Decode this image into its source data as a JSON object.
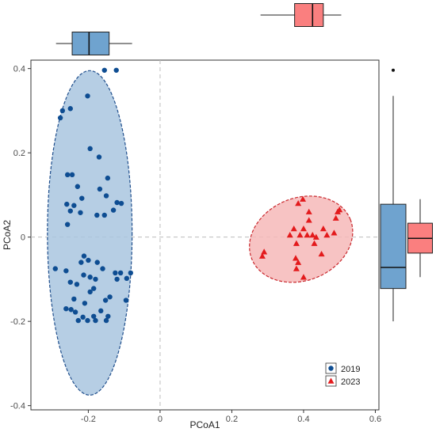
{
  "chart_data": {
    "type": "scatter",
    "title": "",
    "xlabel": "PCoA1",
    "ylabel": "PCoA2",
    "xlim": [
      -0.36,
      0.61
    ],
    "ylim": [
      -0.41,
      0.42
    ],
    "xticks": [
      -0.2,
      0,
      0.2,
      0.4,
      0.6
    ],
    "xtick_labels": [
      "-0.2",
      "0",
      "0.2",
      "0.4",
      "0.6"
    ],
    "yticks": [
      -0.4,
      -0.2,
      0,
      0.2,
      0.4
    ],
    "ytick_labels": [
      "-0.4",
      "-0.2",
      "0",
      "0.2",
      "0.4"
    ],
    "grid": false,
    "reference_lines": {
      "x": 0,
      "y": 0
    },
    "legend_position": "bottom-right",
    "series": [
      {
        "name": "2019",
        "marker": "circle",
        "color": "#0e4d92",
        "fill": "#4f86bd",
        "points": [
          [
            -0.155,
            0.396
          ],
          [
            -0.122,
            0.396
          ],
          [
            -0.202,
            0.335
          ],
          [
            -0.272,
            0.3
          ],
          [
            -0.278,
            0.283
          ],
          [
            -0.25,
            0.305
          ],
          [
            -0.195,
            0.21
          ],
          [
            -0.17,
            0.19
          ],
          [
            -0.258,
            0.148
          ],
          [
            -0.245,
            0.148
          ],
          [
            -0.146,
            0.14
          ],
          [
            -0.168,
            0.114
          ],
          [
            -0.23,
            0.12
          ],
          [
            -0.15,
            0.098
          ],
          [
            -0.218,
            0.092
          ],
          [
            -0.26,
            0.078
          ],
          [
            -0.24,
            0.075
          ],
          [
            -0.12,
            0.082
          ],
          [
            -0.108,
            0.08
          ],
          [
            -0.25,
            0.062
          ],
          [
            -0.222,
            0.058
          ],
          [
            -0.176,
            0.052
          ],
          [
            -0.13,
            0.064
          ],
          [
            -0.155,
            0.052
          ],
          [
            -0.258,
            0.03
          ],
          [
            -0.292,
            -0.075
          ],
          [
            -0.262,
            -0.08
          ],
          [
            -0.212,
            -0.045
          ],
          [
            -0.22,
            -0.06
          ],
          [
            -0.2,
            -0.055
          ],
          [
            -0.175,
            -0.06
          ],
          [
            -0.16,
            -0.075
          ],
          [
            -0.11,
            -0.085
          ],
          [
            -0.082,
            -0.085
          ],
          [
            -0.125,
            -0.085
          ],
          [
            -0.213,
            -0.09
          ],
          [
            -0.195,
            -0.095
          ],
          [
            -0.18,
            -0.1
          ],
          [
            -0.12,
            -0.1
          ],
          [
            -0.093,
            -0.098
          ],
          [
            -0.25,
            -0.107
          ],
          [
            -0.232,
            -0.112
          ],
          [
            -0.195,
            -0.13
          ],
          [
            -0.185,
            -0.122
          ],
          [
            -0.14,
            -0.142
          ],
          [
            -0.24,
            -0.147
          ],
          [
            -0.152,
            -0.15
          ],
          [
            -0.21,
            -0.157
          ],
          [
            -0.095,
            -0.15
          ],
          [
            -0.262,
            -0.17
          ],
          [
            -0.165,
            -0.175
          ],
          [
            -0.215,
            -0.19
          ],
          [
            -0.236,
            -0.178
          ],
          [
            -0.248,
            -0.172
          ],
          [
            -0.185,
            -0.188
          ],
          [
            -0.228,
            -0.198
          ],
          [
            -0.202,
            -0.198
          ],
          [
            -0.18,
            -0.198
          ],
          [
            -0.15,
            -0.198
          ],
          [
            -0.145,
            -0.188
          ]
        ]
      },
      {
        "name": "2023",
        "marker": "triangle",
        "color": "#e31a1c",
        "fill": "#f8a5a5",
        "points": [
          [
            0.398,
            0.09
          ],
          [
            0.385,
            0.08
          ],
          [
            0.415,
            0.06
          ],
          [
            0.415,
            0.04
          ],
          [
            0.4,
            0.02
          ],
          [
            0.373,
            0.02
          ],
          [
            0.362,
            0.005
          ],
          [
            0.39,
            0.005
          ],
          [
            0.41,
            0.005
          ],
          [
            0.425,
            0.005
          ],
          [
            0.455,
            0.02
          ],
          [
            0.465,
            0.005
          ],
          [
            0.435,
            0.0
          ],
          [
            0.485,
            0.01
          ],
          [
            0.49,
            0.045
          ],
          [
            0.495,
            0.06
          ],
          [
            0.5,
            0.065
          ],
          [
            0.38,
            -0.015
          ],
          [
            0.43,
            -0.015
          ],
          [
            0.45,
            -0.04
          ],
          [
            0.378,
            -0.05
          ],
          [
            0.29,
            -0.035
          ],
          [
            0.285,
            -0.045
          ],
          [
            0.385,
            -0.06
          ],
          [
            0.38,
            -0.075
          ],
          [
            0.4,
            -0.095
          ]
        ]
      }
    ],
    "ellipses": [
      {
        "series": "2019",
        "cx": -0.196,
        "cy": 0.01,
        "rx": 0.118,
        "ry": 0.385,
        "fill": "#a9c6df",
        "stroke": "#1f4e8c"
      },
      {
        "series": "2023",
        "cx": 0.393,
        "cy": -0.005,
        "rx": 0.148,
        "ry": 0.098,
        "angle": -22,
        "fill": "#f6b8b8",
        "stroke": "#c9282d"
      }
    ],
    "marginal_boxplots": {
      "x": [
        {
          "series": "2019",
          "min": -0.29,
          "q1": -0.245,
          "median": -0.198,
          "q3": -0.142,
          "max": -0.078,
          "color": "#6fa3cf"
        },
        {
          "series": "2023",
          "min": 0.28,
          "q1": 0.375,
          "median": 0.425,
          "q3": 0.455,
          "max": 0.505,
          "color": "#fa7f7f"
        }
      ],
      "y": [
        {
          "series": "2019",
          "min": -0.2,
          "q1": -0.122,
          "median": -0.072,
          "q3": 0.078,
          "max": 0.335,
          "outliers": [
            0.396
          ],
          "color": "#6fa3cf"
        },
        {
          "series": "2023",
          "min": -0.095,
          "q1": -0.038,
          "median": -0.003,
          "q3": 0.033,
          "max": 0.09,
          "color": "#fa7f7f"
        }
      ]
    }
  }
}
